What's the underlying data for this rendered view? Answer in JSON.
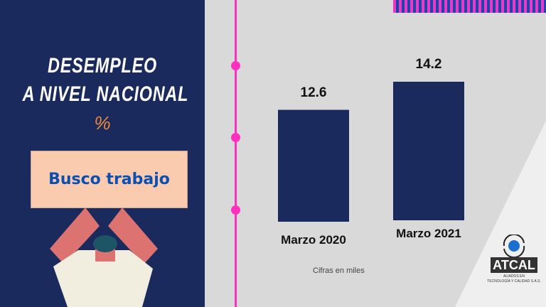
{
  "header": {
    "title_line1": "DESEMPLEO",
    "title_line2": "A NIVEL NACIONAL",
    "unit": "%"
  },
  "sign_text": "Busco trabajo",
  "note": "Cifras en miles",
  "logo": {
    "name": "ATCAL",
    "tagline1": "ALIADOS EN",
    "tagline2": "TECNOLOGÍA Y CALIDAD S.A.S."
  },
  "colors": {
    "navy": "#1b2a5c",
    "pink": "#ff2fbf",
    "orange": "#f08a3c",
    "bar": "#1b2a5c"
  },
  "chart_data": {
    "type": "bar",
    "categories": [
      "Marzo 2020",
      "Marzo 2021"
    ],
    "values": [
      12.6,
      14.2
    ],
    "value_labels": [
      "12.6",
      "14.2"
    ]
  }
}
